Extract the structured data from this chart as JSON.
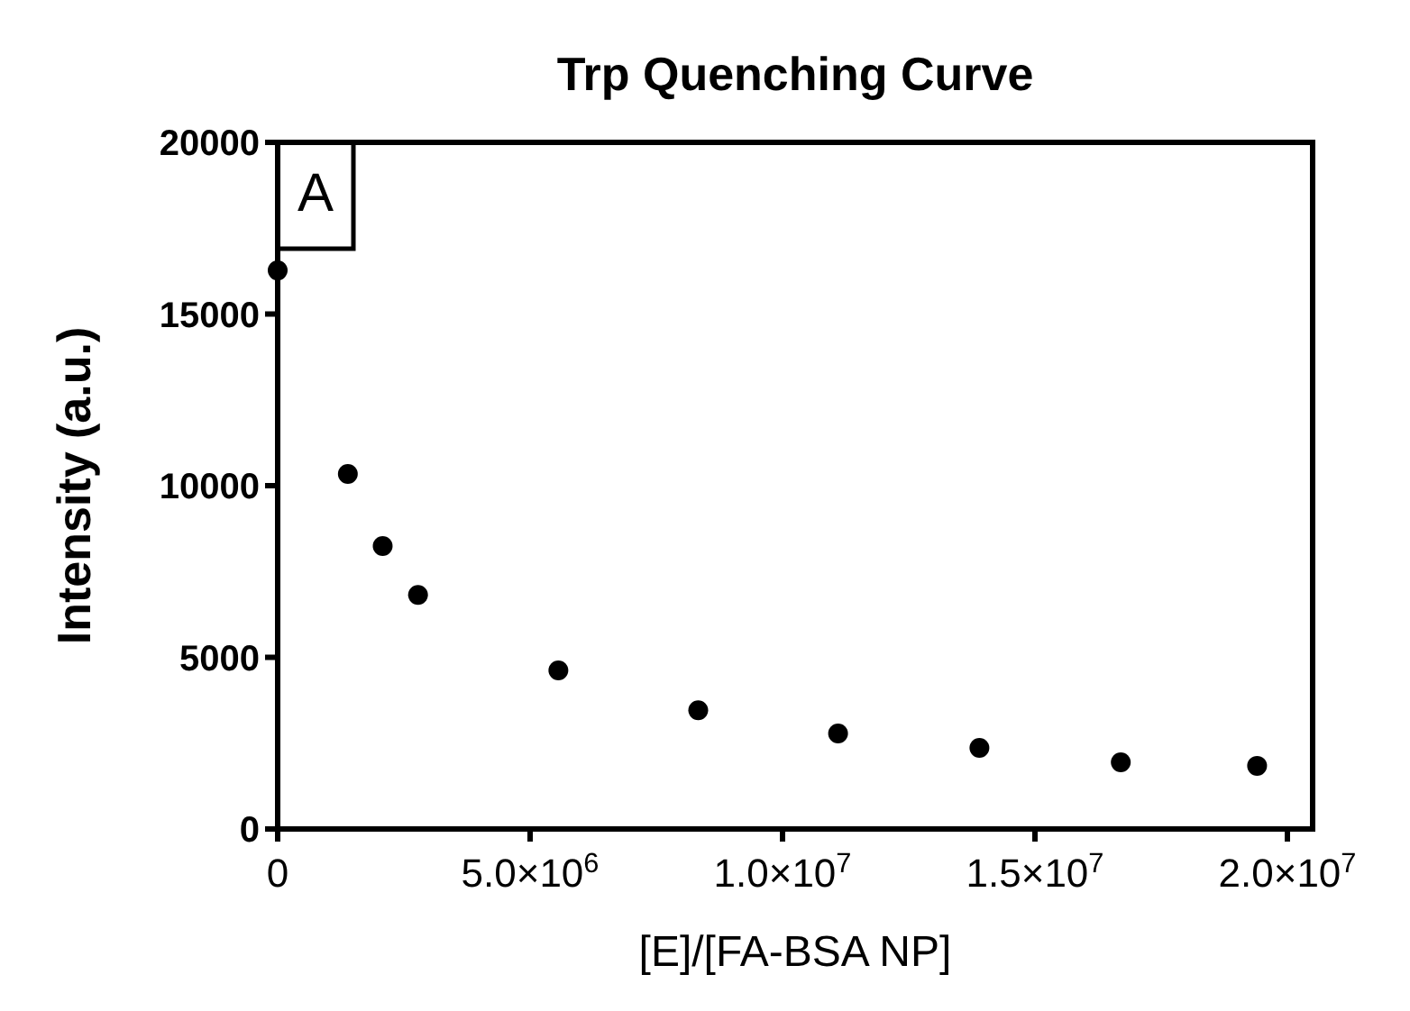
{
  "chart_data": {
    "type": "scatter",
    "title": "Trp Quenching Curve",
    "xlabel": "[E]/[FA-BSA NP]",
    "ylabel": "Intensity (a.u.)",
    "annotations": [
      "A"
    ],
    "x": [
      0,
      1390000,
      2080000,
      2780000,
      5560000,
      8330000,
      11100000,
      13900000,
      16700000,
      19400000
    ],
    "series": [
      {
        "color": "#000000",
        "values": [
          16270,
          10340,
          8240,
          6820,
          4620,
          3460,
          2780,
          2360,
          1940,
          1840
        ]
      }
    ],
    "xlim": [
      0,
      20500000
    ],
    "ylim": [
      0,
      20000
    ],
    "xticks": [
      0,
      {
        "value": 5000000,
        "label": "5.0×10$^{6}$"
      },
      {
        "value": 10000000,
        "label": "1.0×10$^{7}$"
      },
      {
        "value": 15000000,
        "label": "1.5×10$^{7}$"
      },
      {
        "value": 20000000,
        "label": "2.0×10$^{7}$"
      }
    ],
    "yticks": [
      0,
      5000,
      10000,
      15000,
      20000
    ],
    "marker": "circle",
    "grid": false
  }
}
